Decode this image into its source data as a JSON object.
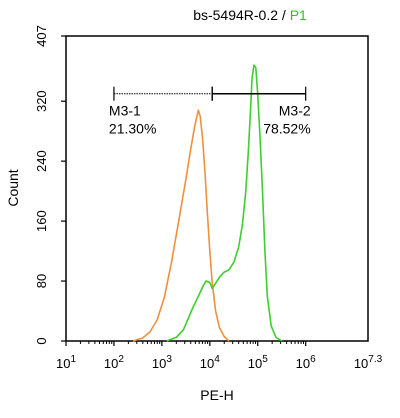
{
  "chart_data": {
    "type": "line",
    "title_main": "bs-5494R-0.2 / ",
    "title_accent": "P1",
    "xlabel": "PE-H",
    "ylabel": "Count",
    "x_scale": "log10",
    "xlim": [
      1,
      7.3
    ],
    "ylim": [
      0,
      407
    ],
    "x_ticks": [
      {
        "exp": 1,
        "base": "10",
        "sup": "1"
      },
      {
        "exp": 2,
        "base": "10",
        "sup": "2"
      },
      {
        "exp": 3,
        "base": "10",
        "sup": "3"
      },
      {
        "exp": 4,
        "base": "10",
        "sup": "4"
      },
      {
        "exp": 5,
        "base": "10",
        "sup": "5"
      },
      {
        "exp": 6,
        "base": "10",
        "sup": "6"
      },
      {
        "exp": 7.3,
        "base": "10",
        "sup": "7.3"
      }
    ],
    "y_ticks": [
      "0",
      "80",
      "160",
      "240",
      "320",
      "407"
    ],
    "series": [
      {
        "color": "#f0903a",
        "points": [
          [
            2.4,
            0
          ],
          [
            2.6,
            4
          ],
          [
            2.75,
            12
          ],
          [
            2.9,
            28
          ],
          [
            3.05,
            58
          ],
          [
            3.2,
            105
          ],
          [
            3.35,
            160
          ],
          [
            3.5,
            215
          ],
          [
            3.6,
            255
          ],
          [
            3.68,
            285
          ],
          [
            3.73,
            300
          ],
          [
            3.76,
            308
          ],
          [
            3.8,
            300
          ],
          [
            3.85,
            270
          ],
          [
            3.9,
            225
          ],
          [
            3.95,
            170
          ],
          [
            4.0,
            120
          ],
          [
            4.05,
            78
          ],
          [
            4.12,
            40
          ],
          [
            4.2,
            18
          ],
          [
            4.3,
            6
          ],
          [
            4.4,
            0
          ]
        ]
      },
      {
        "color": "#3ccf2d",
        "points": [
          [
            3.1,
            0
          ],
          [
            3.3,
            5
          ],
          [
            3.45,
            15
          ],
          [
            3.55,
            30
          ],
          [
            3.65,
            45
          ],
          [
            3.75,
            58
          ],
          [
            3.85,
            72
          ],
          [
            3.92,
            80
          ],
          [
            4.0,
            78
          ],
          [
            4.05,
            70
          ],
          [
            4.1,
            75
          ],
          [
            4.2,
            85
          ],
          [
            4.3,
            92
          ],
          [
            4.4,
            95
          ],
          [
            4.5,
            105
          ],
          [
            4.6,
            125
          ],
          [
            4.68,
            155
          ],
          [
            4.75,
            200
          ],
          [
            4.8,
            250
          ],
          [
            4.85,
            310
          ],
          [
            4.88,
            350
          ],
          [
            4.92,
            368
          ],
          [
            4.96,
            365
          ],
          [
            5.0,
            330
          ],
          [
            5.05,
            270
          ],
          [
            5.1,
            200
          ],
          [
            5.15,
            120
          ],
          [
            5.2,
            60
          ],
          [
            5.28,
            20
          ],
          [
            5.38,
            5
          ],
          [
            5.5,
            0
          ]
        ]
      }
    ],
    "gates": [
      {
        "name": "M3-1",
        "percent": "21.30%",
        "x_start": 2.0,
        "x_end": 4.05
      },
      {
        "name": "M3-2",
        "percent": "78.52%",
        "x_start": 4.05,
        "x_end": 6.0
      }
    ],
    "gate_y": 330
  }
}
